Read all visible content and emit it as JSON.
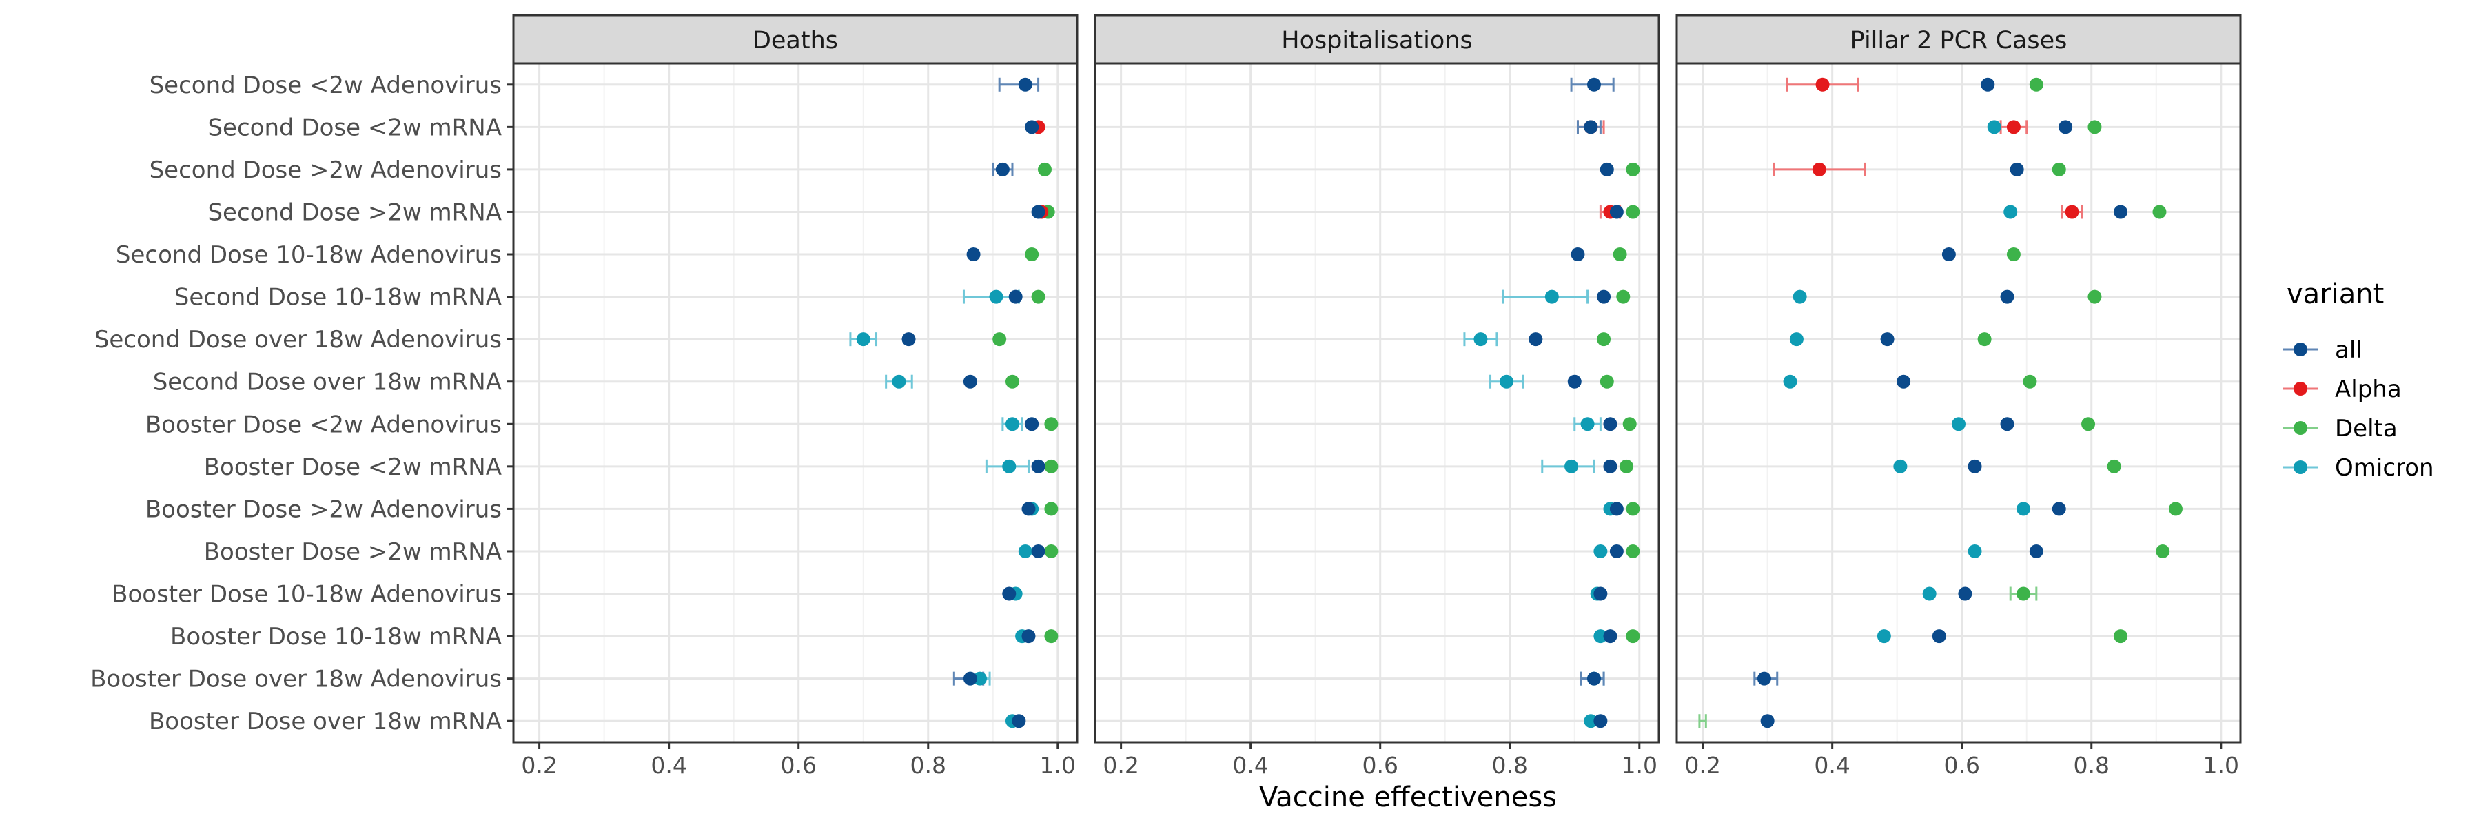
{
  "chart_data": {
    "type": "scatter",
    "subtype": "faceted dot plot with horizontal error bars",
    "facets": [
      "Deaths",
      "Hospitalisations",
      "Pillar 2 PCR Cases"
    ],
    "categories": [
      "Second Dose <2w Adenovirus",
      "Second Dose <2w mRNA",
      "Second Dose >2w Adenovirus",
      "Second Dose >2w mRNA",
      "Second Dose 10-18w Adenovirus",
      "Second Dose 10-18w mRNA",
      "Second Dose over 18w Adenovirus",
      "Second Dose over 18w mRNA",
      "Booster Dose <2w Adenovirus",
      "Booster Dose <2w mRNA",
      "Booster Dose >2w Adenovirus",
      "Booster Dose >2w mRNA",
      "Booster Dose 10-18w Adenovirus",
      "Booster Dose 10-18w mRNA",
      "Booster Dose over 18w Adenovirus",
      "Booster Dose over 18w mRNA"
    ],
    "xlabel": "Vaccine effectiveness",
    "ylabel": "",
    "xlim": [
      0.16,
      1.03
    ],
    "xticks": [
      0.2,
      0.4,
      0.6,
      0.8,
      1.0
    ],
    "xtick_labels": [
      "0.2",
      "0.4",
      "0.6",
      "0.8",
      "1.0"
    ],
    "grid": true,
    "legend": {
      "title": "variant",
      "position": "right",
      "entries": [
        "all",
        "Alpha",
        "Delta",
        "Omicron"
      ]
    },
    "series_colors": {
      "all": "#0b4a8b",
      "Alpha": "#e41a1c",
      "Delta": "#3db34a",
      "Omicron": "#0f9cb4"
    },
    "errorbar_colors": {
      "all": "#5f86b5",
      "Alpha": "#ef7678",
      "Delta": "#82cf8a",
      "Omicron": "#6fc7d8"
    },
    "points": [
      {
        "facet": 0,
        "cat": 0,
        "variant": "all",
        "x": 0.95,
        "lo": 0.91,
        "hi": 0.97
      },
      {
        "facet": 0,
        "cat": 1,
        "variant": "Alpha",
        "x": 0.97
      },
      {
        "facet": 0,
        "cat": 1,
        "variant": "all",
        "x": 0.96
      },
      {
        "facet": 0,
        "cat": 2,
        "variant": "Delta",
        "x": 0.98
      },
      {
        "facet": 0,
        "cat": 2,
        "variant": "all",
        "x": 0.915,
        "lo": 0.9,
        "hi": 0.93
      },
      {
        "facet": 0,
        "cat": 3,
        "variant": "Delta",
        "x": 0.985
      },
      {
        "facet": 0,
        "cat": 3,
        "variant": "Alpha",
        "x": 0.975
      },
      {
        "facet": 0,
        "cat": 3,
        "variant": "all",
        "x": 0.97
      },
      {
        "facet": 0,
        "cat": 4,
        "variant": "Delta",
        "x": 0.96
      },
      {
        "facet": 0,
        "cat": 4,
        "variant": "all",
        "x": 0.87
      },
      {
        "facet": 0,
        "cat": 5,
        "variant": "Omicron",
        "x": 0.905,
        "lo": 0.855,
        "hi": 0.94
      },
      {
        "facet": 0,
        "cat": 5,
        "variant": "Delta",
        "x": 0.97
      },
      {
        "facet": 0,
        "cat": 5,
        "variant": "all",
        "x": 0.935
      },
      {
        "facet": 0,
        "cat": 6,
        "variant": "Omicron",
        "x": 0.7,
        "lo": 0.68,
        "hi": 0.72
      },
      {
        "facet": 0,
        "cat": 6,
        "variant": "Delta",
        "x": 0.91
      },
      {
        "facet": 0,
        "cat": 6,
        "variant": "all",
        "x": 0.77
      },
      {
        "facet": 0,
        "cat": 7,
        "variant": "Omicron",
        "x": 0.755,
        "lo": 0.735,
        "hi": 0.775
      },
      {
        "facet": 0,
        "cat": 7,
        "variant": "Delta",
        "x": 0.93
      },
      {
        "facet": 0,
        "cat": 7,
        "variant": "all",
        "x": 0.865
      },
      {
        "facet": 0,
        "cat": 8,
        "variant": "Omicron",
        "x": 0.93,
        "lo": 0.915,
        "hi": 0.945
      },
      {
        "facet": 0,
        "cat": 8,
        "variant": "Delta",
        "x": 0.99
      },
      {
        "facet": 0,
        "cat": 8,
        "variant": "all",
        "x": 0.96
      },
      {
        "facet": 0,
        "cat": 9,
        "variant": "Omicron",
        "x": 0.925,
        "lo": 0.89,
        "hi": 0.955
      },
      {
        "facet": 0,
        "cat": 9,
        "variant": "Delta",
        "x": 0.99
      },
      {
        "facet": 0,
        "cat": 9,
        "variant": "all",
        "x": 0.97
      },
      {
        "facet": 0,
        "cat": 10,
        "variant": "Omicron",
        "x": 0.96
      },
      {
        "facet": 0,
        "cat": 10,
        "variant": "Delta",
        "x": 0.99
      },
      {
        "facet": 0,
        "cat": 10,
        "variant": "all",
        "x": 0.955
      },
      {
        "facet": 0,
        "cat": 11,
        "variant": "Omicron",
        "x": 0.95
      },
      {
        "facet": 0,
        "cat": 11,
        "variant": "Delta",
        "x": 0.99
      },
      {
        "facet": 0,
        "cat": 11,
        "variant": "all",
        "x": 0.97
      },
      {
        "facet": 0,
        "cat": 12,
        "variant": "Omicron",
        "x": 0.935
      },
      {
        "facet": 0,
        "cat": 12,
        "variant": "all",
        "x": 0.925
      },
      {
        "facet": 0,
        "cat": 13,
        "variant": "Omicron",
        "x": 0.945
      },
      {
        "facet": 0,
        "cat": 13,
        "variant": "Delta",
        "x": 0.99
      },
      {
        "facet": 0,
        "cat": 13,
        "variant": "all",
        "x": 0.955
      },
      {
        "facet": 0,
        "cat": 14,
        "variant": "Omicron",
        "x": 0.88,
        "lo": 0.865,
        "hi": 0.895
      },
      {
        "facet": 0,
        "cat": 14,
        "variant": "all",
        "x": 0.865,
        "lo": 0.84,
        "hi": 0.885
      },
      {
        "facet": 0,
        "cat": 15,
        "variant": "Omicron",
        "x": 0.93
      },
      {
        "facet": 0,
        "cat": 15,
        "variant": "all",
        "x": 0.94
      },
      {
        "facet": 1,
        "cat": 0,
        "variant": "all",
        "x": 0.93,
        "lo": 0.895,
        "hi": 0.96
      },
      {
        "facet": 1,
        "cat": 1,
        "variant": "Alpha",
        "x": 0.925,
        "lo": 0.905,
        "hi": 0.945
      },
      {
        "facet": 1,
        "cat": 1,
        "variant": "all",
        "x": 0.925,
        "lo": 0.905,
        "hi": 0.94
      },
      {
        "facet": 1,
        "cat": 2,
        "variant": "Delta",
        "x": 0.99
      },
      {
        "facet": 1,
        "cat": 2,
        "variant": "all",
        "x": 0.95
      },
      {
        "facet": 1,
        "cat": 3,
        "variant": "Delta",
        "x": 0.99
      },
      {
        "facet": 1,
        "cat": 3,
        "variant": "Alpha",
        "x": 0.955,
        "lo": 0.94,
        "hi": 0.97
      },
      {
        "facet": 1,
        "cat": 3,
        "variant": "all",
        "x": 0.965
      },
      {
        "facet": 1,
        "cat": 4,
        "variant": "Delta",
        "x": 0.97
      },
      {
        "facet": 1,
        "cat": 4,
        "variant": "all",
        "x": 0.905
      },
      {
        "facet": 1,
        "cat": 5,
        "variant": "Omicron",
        "x": 0.865,
        "lo": 0.79,
        "hi": 0.92
      },
      {
        "facet": 1,
        "cat": 5,
        "variant": "Delta",
        "x": 0.975
      },
      {
        "facet": 1,
        "cat": 5,
        "variant": "all",
        "x": 0.945
      },
      {
        "facet": 1,
        "cat": 6,
        "variant": "Omicron",
        "x": 0.755,
        "lo": 0.73,
        "hi": 0.78
      },
      {
        "facet": 1,
        "cat": 6,
        "variant": "Delta",
        "x": 0.945
      },
      {
        "facet": 1,
        "cat": 6,
        "variant": "all",
        "x": 0.84
      },
      {
        "facet": 1,
        "cat": 7,
        "variant": "Omicron",
        "x": 0.795,
        "lo": 0.77,
        "hi": 0.82
      },
      {
        "facet": 1,
        "cat": 7,
        "variant": "Delta",
        "x": 0.95
      },
      {
        "facet": 1,
        "cat": 7,
        "variant": "all",
        "x": 0.9
      },
      {
        "facet": 1,
        "cat": 8,
        "variant": "Omicron",
        "x": 0.92,
        "lo": 0.9,
        "hi": 0.94
      },
      {
        "facet": 1,
        "cat": 8,
        "variant": "Delta",
        "x": 0.985
      },
      {
        "facet": 1,
        "cat": 8,
        "variant": "all",
        "x": 0.955
      },
      {
        "facet": 1,
        "cat": 9,
        "variant": "Omicron",
        "x": 0.895,
        "lo": 0.85,
        "hi": 0.93
      },
      {
        "facet": 1,
        "cat": 9,
        "variant": "Delta",
        "x": 0.98
      },
      {
        "facet": 1,
        "cat": 9,
        "variant": "all",
        "x": 0.955
      },
      {
        "facet": 1,
        "cat": 10,
        "variant": "Omicron",
        "x": 0.955
      },
      {
        "facet": 1,
        "cat": 10,
        "variant": "Delta",
        "x": 0.99
      },
      {
        "facet": 1,
        "cat": 10,
        "variant": "all",
        "x": 0.965
      },
      {
        "facet": 1,
        "cat": 11,
        "variant": "Omicron",
        "x": 0.94
      },
      {
        "facet": 1,
        "cat": 11,
        "variant": "Delta",
        "x": 0.99
      },
      {
        "facet": 1,
        "cat": 11,
        "variant": "all",
        "x": 0.965
      },
      {
        "facet": 1,
        "cat": 12,
        "variant": "Omicron",
        "x": 0.935
      },
      {
        "facet": 1,
        "cat": 12,
        "variant": "all",
        "x": 0.94
      },
      {
        "facet": 1,
        "cat": 13,
        "variant": "Omicron",
        "x": 0.94
      },
      {
        "facet": 1,
        "cat": 13,
        "variant": "Delta",
        "x": 0.99
      },
      {
        "facet": 1,
        "cat": 13,
        "variant": "all",
        "x": 0.955
      },
      {
        "facet": 1,
        "cat": 14,
        "variant": "Omicron",
        "x": 0.93,
        "lo": 0.91,
        "hi": 0.945
      },
      {
        "facet": 1,
        "cat": 14,
        "variant": "all",
        "x": 0.93,
        "lo": 0.91,
        "hi": 0.945
      },
      {
        "facet": 1,
        "cat": 15,
        "variant": "Omicron",
        "x": 0.925
      },
      {
        "facet": 1,
        "cat": 15,
        "variant": "all",
        "x": 0.94
      },
      {
        "facet": 2,
        "cat": 0,
        "variant": "Alpha",
        "x": 0.385,
        "lo": 0.33,
        "hi": 0.44
      },
      {
        "facet": 2,
        "cat": 0,
        "variant": "Delta",
        "x": 0.715
      },
      {
        "facet": 2,
        "cat": 0,
        "variant": "all",
        "x": 0.64
      },
      {
        "facet": 2,
        "cat": 1,
        "variant": "Omicron",
        "x": 0.65
      },
      {
        "facet": 2,
        "cat": 1,
        "variant": "Alpha",
        "x": 0.68,
        "lo": 0.66,
        "hi": 0.7
      },
      {
        "facet": 2,
        "cat": 1,
        "variant": "Delta",
        "x": 0.805
      },
      {
        "facet": 2,
        "cat": 1,
        "variant": "all",
        "x": 0.76
      },
      {
        "facet": 2,
        "cat": 2,
        "variant": "Alpha",
        "x": 0.38,
        "lo": 0.31,
        "hi": 0.45
      },
      {
        "facet": 2,
        "cat": 2,
        "variant": "Delta",
        "x": 0.75
      },
      {
        "facet": 2,
        "cat": 2,
        "variant": "all",
        "x": 0.685
      },
      {
        "facet": 2,
        "cat": 3,
        "variant": "Omicron",
        "x": 0.675
      },
      {
        "facet": 2,
        "cat": 3,
        "variant": "Alpha",
        "x": 0.77,
        "lo": 0.755,
        "hi": 0.785
      },
      {
        "facet": 2,
        "cat": 3,
        "variant": "Delta",
        "x": 0.905
      },
      {
        "facet": 2,
        "cat": 3,
        "variant": "all",
        "x": 0.845
      },
      {
        "facet": 2,
        "cat": 4,
        "variant": "Delta",
        "x": 0.68
      },
      {
        "facet": 2,
        "cat": 4,
        "variant": "all",
        "x": 0.58
      },
      {
        "facet": 2,
        "cat": 5,
        "variant": "Omicron",
        "x": 0.35
      },
      {
        "facet": 2,
        "cat": 5,
        "variant": "Delta",
        "x": 0.805
      },
      {
        "facet": 2,
        "cat": 5,
        "variant": "all",
        "x": 0.67
      },
      {
        "facet": 2,
        "cat": 6,
        "variant": "Omicron",
        "x": 0.345
      },
      {
        "facet": 2,
        "cat": 6,
        "variant": "Delta",
        "x": 0.635
      },
      {
        "facet": 2,
        "cat": 6,
        "variant": "all",
        "x": 0.485
      },
      {
        "facet": 2,
        "cat": 7,
        "variant": "Omicron",
        "x": 0.335
      },
      {
        "facet": 2,
        "cat": 7,
        "variant": "Delta",
        "x": 0.705
      },
      {
        "facet": 2,
        "cat": 7,
        "variant": "all",
        "x": 0.51
      },
      {
        "facet": 2,
        "cat": 8,
        "variant": "Omicron",
        "x": 0.595
      },
      {
        "facet": 2,
        "cat": 8,
        "variant": "Delta",
        "x": 0.795
      },
      {
        "facet": 2,
        "cat": 8,
        "variant": "all",
        "x": 0.67
      },
      {
        "facet": 2,
        "cat": 9,
        "variant": "Omicron",
        "x": 0.505
      },
      {
        "facet": 2,
        "cat": 9,
        "variant": "Delta",
        "x": 0.835
      },
      {
        "facet": 2,
        "cat": 9,
        "variant": "all",
        "x": 0.62
      },
      {
        "facet": 2,
        "cat": 10,
        "variant": "Omicron",
        "x": 0.695
      },
      {
        "facet": 2,
        "cat": 10,
        "variant": "Delta",
        "x": 0.93
      },
      {
        "facet": 2,
        "cat": 10,
        "variant": "all",
        "x": 0.75
      },
      {
        "facet": 2,
        "cat": 11,
        "variant": "Omicron",
        "x": 0.62
      },
      {
        "facet": 2,
        "cat": 11,
        "variant": "Delta",
        "x": 0.91
      },
      {
        "facet": 2,
        "cat": 11,
        "variant": "all",
        "x": 0.715
      },
      {
        "facet": 2,
        "cat": 12,
        "variant": "Omicron",
        "x": 0.55
      },
      {
        "facet": 2,
        "cat": 12,
        "variant": "Delta",
        "x": 0.695,
        "lo": 0.675,
        "hi": 0.715
      },
      {
        "facet": 2,
        "cat": 12,
        "variant": "all",
        "x": 0.605
      },
      {
        "facet": 2,
        "cat": 13,
        "variant": "Omicron",
        "x": 0.48
      },
      {
        "facet": 2,
        "cat": 13,
        "variant": "Delta",
        "x": 0.845
      },
      {
        "facet": 2,
        "cat": 13,
        "variant": "all",
        "x": 0.565
      },
      {
        "facet": 2,
        "cat": 14,
        "variant": "all",
        "x": 0.295,
        "lo": 0.28,
        "hi": 0.315
      },
      {
        "facet": 2,
        "cat": 15,
        "variant": "Delta",
        "x": 0.2,
        "lo": 0.195,
        "hi": 0.205,
        "hollow": true
      },
      {
        "facet": 2,
        "cat": 15,
        "variant": "all",
        "x": 0.3
      }
    ]
  }
}
